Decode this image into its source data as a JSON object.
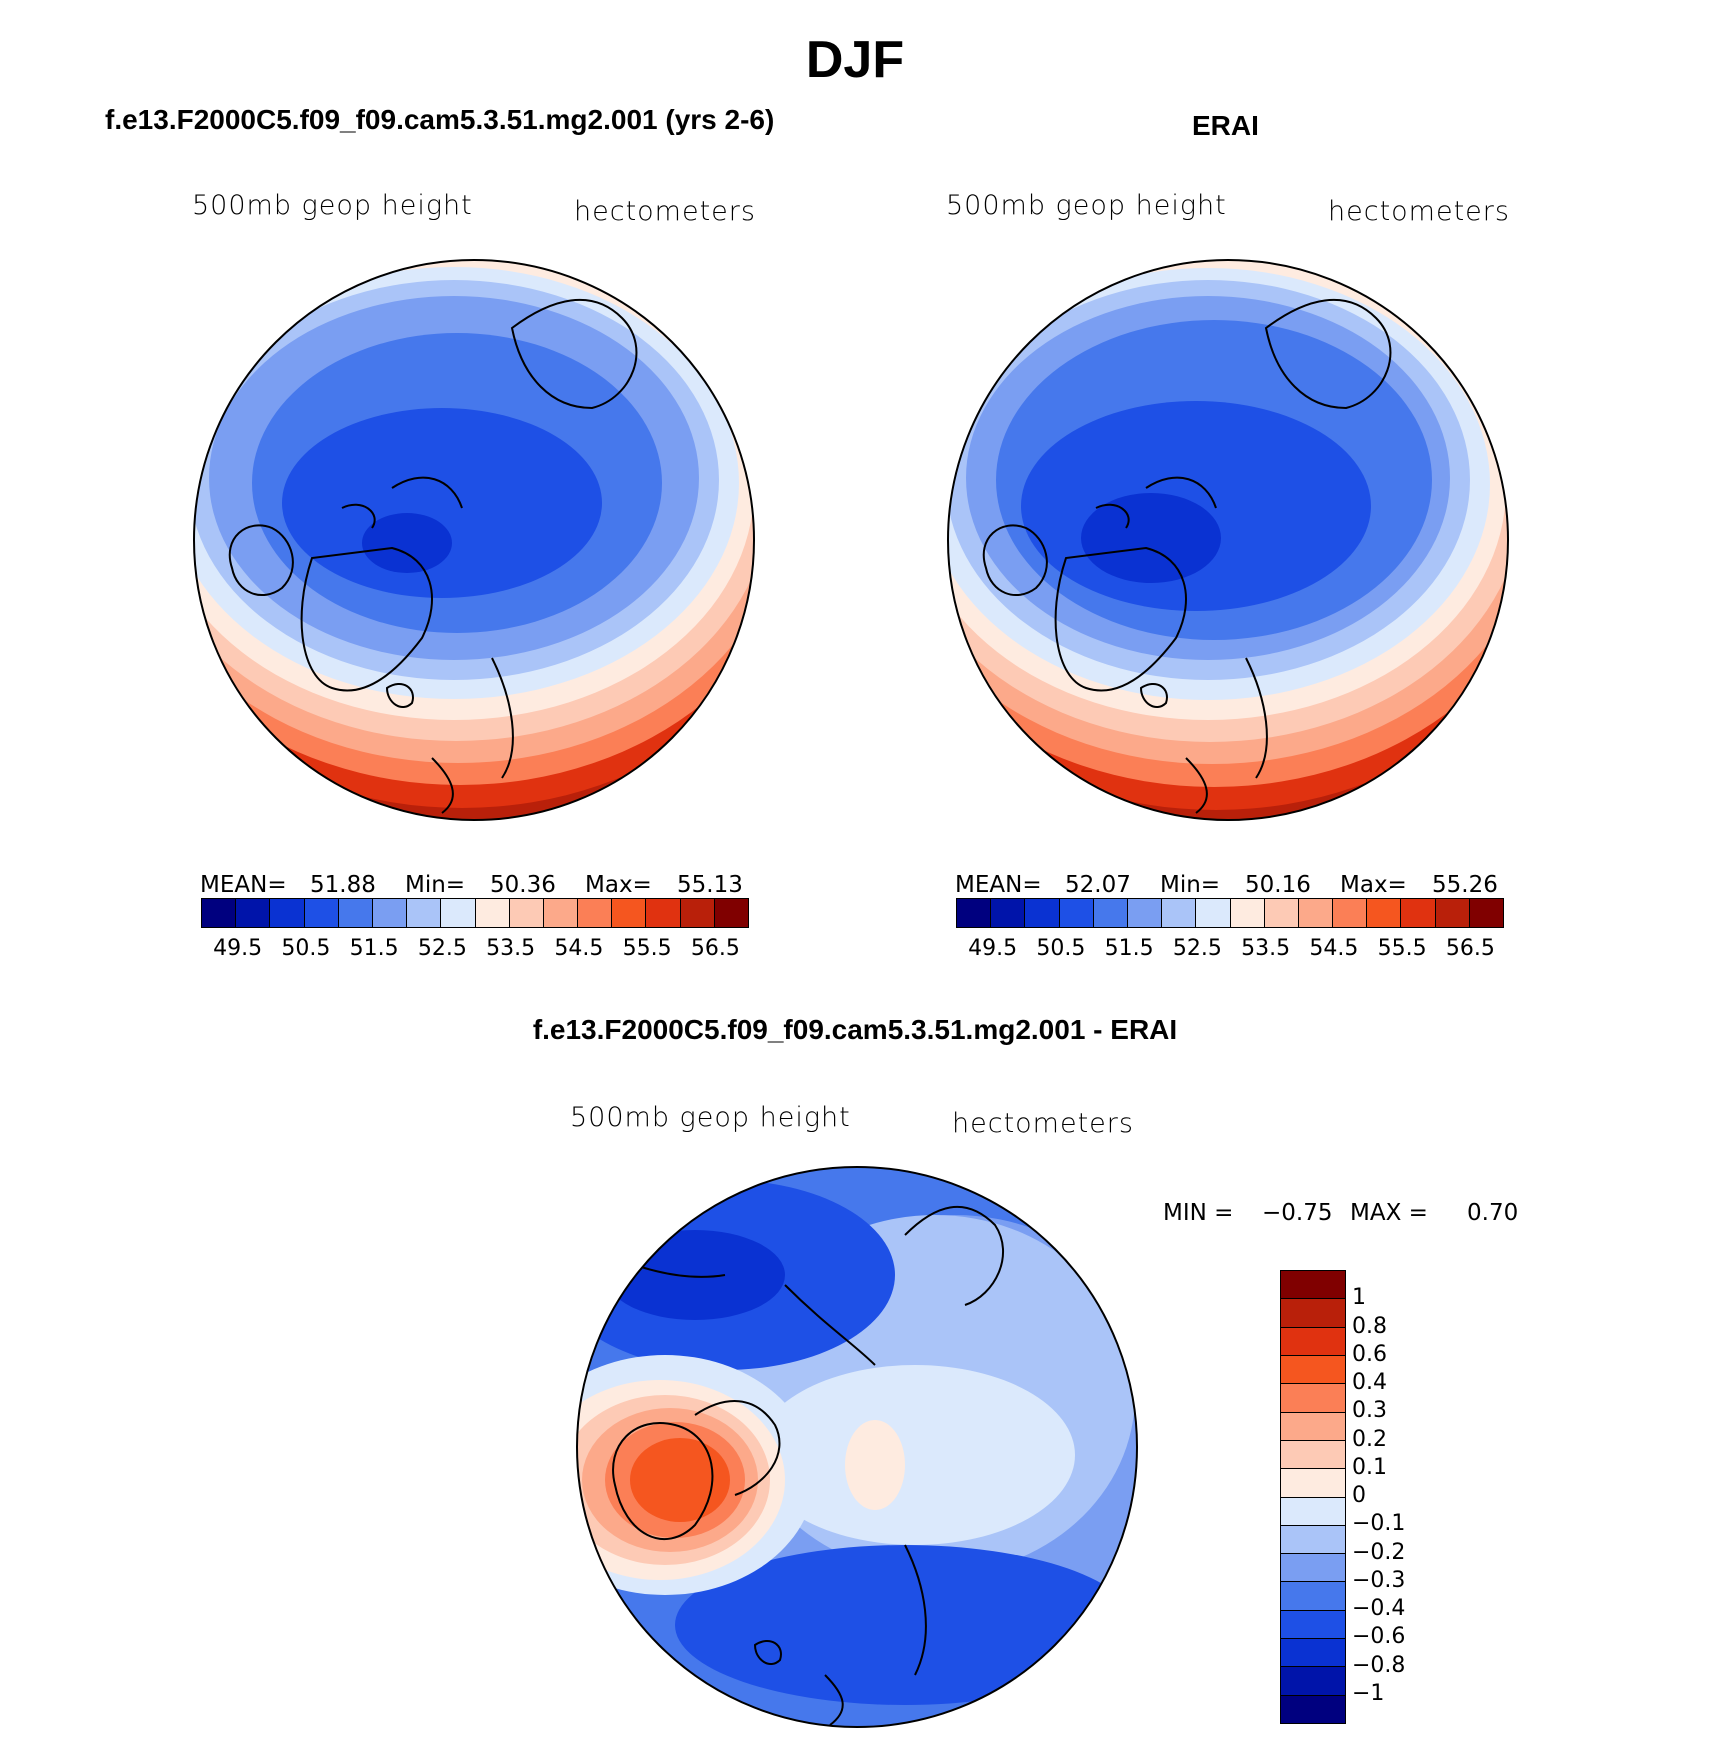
{
  "title": "DJF",
  "panels": [
    {
      "title": "f.e13.F2000C5.f09_f09.cam5.3.51.mg2.001 (yrs 2-6)",
      "variable": "500mb geop height",
      "units": "hectometers",
      "stats": {
        "mean_label": "MEAN=",
        "mean": "51.88",
        "min_label": "Min=",
        "min": "50.36",
        "max_label": "Max=",
        "max": "55.13"
      }
    },
    {
      "title": "ERAI",
      "variable": "500mb geop height",
      "units": "hectometers",
      "stats": {
        "mean_label": "MEAN=",
        "mean": "52.07",
        "min_label": "Min=",
        "min": "50.16",
        "max_label": "Max=",
        "max": "55.26"
      }
    },
    {
      "title": "f.e13.F2000C5.f09_f09.cam5.3.51.mg2.001 - ERAI",
      "variable": "500mb geop height",
      "units": "hectometers",
      "stats": {
        "min_label": "MIN =",
        "min": "−0.75",
        "max_label": "MAX =",
        "max": "0.70"
      }
    }
  ],
  "colorbar_main": {
    "colors": [
      "#00007f",
      "#0014aa",
      "#0a32d2",
      "#1e50e6",
      "#4678ec",
      "#7a9ef2",
      "#aac4f8",
      "#dbe9fc",
      "#feebe0",
      "#fdcab5",
      "#fca98a",
      "#fb7f56",
      "#f5561f",
      "#e03210",
      "#b9200a",
      "#800000"
    ],
    "tick_labels": [
      "49.5",
      "50.5",
      "51.5",
      "52.5",
      "53.5",
      "54.5",
      "55.5",
      "56.5"
    ]
  },
  "colorbar_diff": {
    "colors": [
      "#800000",
      "#b9200a",
      "#e03210",
      "#f5561f",
      "#fb7f56",
      "#fca98a",
      "#fdcab5",
      "#feebe0",
      "#dbe9fc",
      "#aac4f8",
      "#7a9ef2",
      "#4678ec",
      "#1e50e6",
      "#0a32d2",
      "#0014aa",
      "#00007f"
    ],
    "tick_labels": [
      "1",
      "0.8",
      "0.6",
      "0.4",
      "0.3",
      "0.2",
      "0.1",
      "0",
      "−0.1",
      "−0.2",
      "−0.3",
      "−0.4",
      "−0.6",
      "−0.8",
      "−1"
    ]
  },
  "colors": {
    "land_outline": "#000000"
  }
}
